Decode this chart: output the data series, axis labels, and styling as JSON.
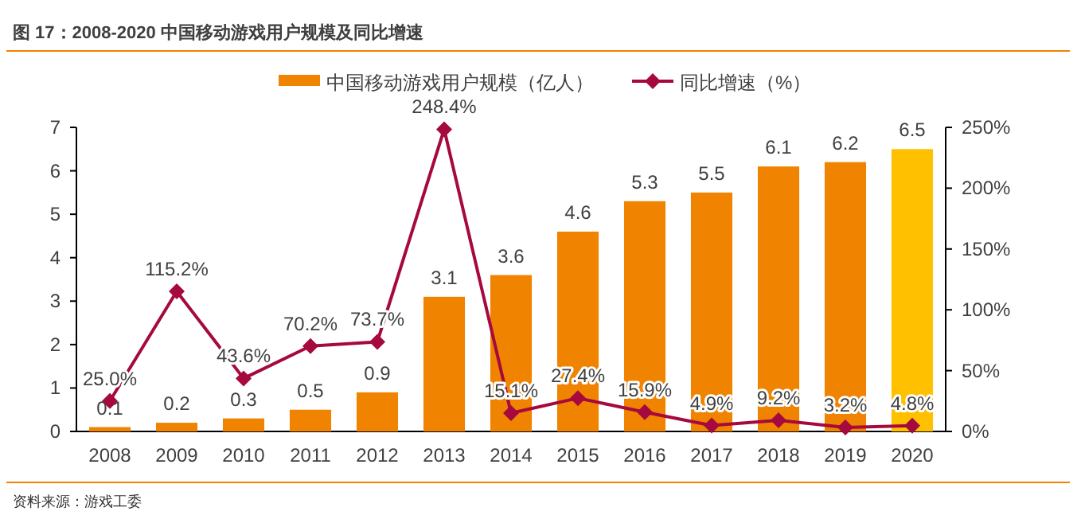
{
  "chart_data": {
    "type": "bar",
    "title": "图 17：2008-2020 中国移动游戏用户规模及同比增速",
    "categories": [
      "2008",
      "2009",
      "2010",
      "2011",
      "2012",
      "2013",
      "2014",
      "2015",
      "2016",
      "2017",
      "2018",
      "2019",
      "2020"
    ],
    "series": [
      {
        "name": "中国移动游戏用户规模（亿人）",
        "color": "#f08300",
        "colors": [
          "#f08300",
          "#f08300",
          "#f08300",
          "#f08300",
          "#f08300",
          "#f08300",
          "#f08300",
          "#f08300",
          "#f08300",
          "#f08300",
          "#f08300",
          "#f08300",
          "#ffc000"
        ],
        "values": [
          0.1,
          0.2,
          0.3,
          0.5,
          0.9,
          3.1,
          3.6,
          4.6,
          5.3,
          5.5,
          6.1,
          6.2,
          6.5
        ],
        "value_labels": [
          "0.1",
          "0.2",
          "0.3",
          "0.5",
          "0.9",
          "3.1",
          "3.6",
          "4.6",
          "5.3",
          "5.5",
          "6.1",
          "6.2",
          "6.5"
        ]
      },
      {
        "name": "同比增速（%）",
        "type": "line",
        "axis": "y2",
        "color": "#a6093d",
        "marker": "diamond",
        "values": [
          25.0,
          115.2,
          43.6,
          70.2,
          73.7,
          248.4,
          15.1,
          27.4,
          15.9,
          4.9,
          9.2,
          3.2,
          4.8
        ],
        "value_labels": [
          "25.0%",
          "115.2%",
          "43.6%",
          "70.2%",
          "73.7%",
          "248.4%",
          "15.1%",
          "27.4%",
          "15.9%",
          "4.9%",
          "9.2%",
          "3.2%",
          "4.8%"
        ]
      }
    ],
    "ylim": [
      0,
      7
    ],
    "yticks": [
      0,
      1,
      2,
      3,
      4,
      5,
      6,
      7
    ],
    "y2lim": [
      0,
      250
    ],
    "y2ticks": [
      {
        "value": 0,
        "label": "0%"
      },
      {
        "value": 50,
        "label": "50%"
      },
      {
        "value": 100,
        "label": "100%"
      },
      {
        "value": 150,
        "label": "150%"
      },
      {
        "value": 200,
        "label": "200%"
      },
      {
        "value": 250,
        "label": "250%"
      }
    ],
    "legend": "top",
    "grid": false,
    "annotations": [
      "资料来源：游戏工委"
    ]
  }
}
